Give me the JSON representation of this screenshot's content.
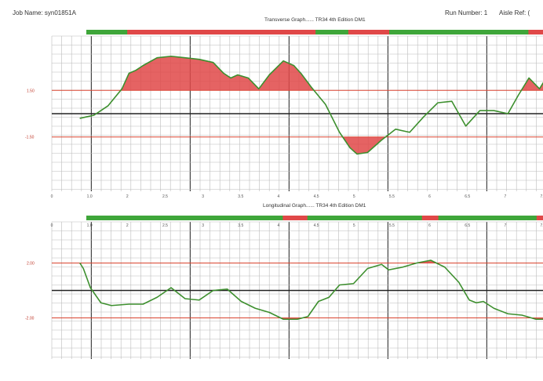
{
  "header": {
    "job_name": "Job Name: syn01851A",
    "run_number": "Run Number: 1",
    "aisle_ref": "Aisle Ref: ("
  },
  "colors": {
    "pass": "#3fa63a",
    "fail": "#e04848",
    "trace": "#3d8f2e",
    "limit": "#d9432e",
    "grid": "#bcbcbc",
    "major_grid": "#444444"
  },
  "chart_data": [
    {
      "type": "line",
      "title": "Transverse Graph...... TR34 4th Edition DM1",
      "x_ticks": [
        "0",
        "1.0",
        "2",
        "2.5",
        "3",
        "3.5",
        "4",
        "4.5",
        "5",
        "5.5",
        "6",
        "6.5",
        "7",
        "7.5"
      ],
      "y_limit_labels": [
        "1.50",
        "-1.50"
      ],
      "upper_limit": 1.5,
      "lower_limit": -1.5,
      "ylim": [
        -5,
        5
      ],
      "fill_exceedance": true,
      "x": [
        0.4,
        0.5,
        0.6,
        0.8,
        1.0,
        1.1,
        1.2,
        1.3,
        1.5,
        1.7,
        1.9,
        2.1,
        2.3,
        2.45,
        2.55,
        2.65,
        2.8,
        2.95,
        3.1,
        3.3,
        3.45,
        3.55,
        3.7,
        3.9,
        4.1,
        4.25,
        4.35,
        4.5,
        4.7,
        4.9,
        5.1,
        5.3,
        5.5,
        5.7,
        5.9,
        6.1,
        6.3,
        6.5,
        6.65,
        6.8,
        6.95,
        7.1,
        7.3,
        7.45,
        7.55,
        7.7
      ],
      "y": [
        -0.3,
        -0.2,
        -0.1,
        0.5,
        1.6,
        2.6,
        2.8,
        3.1,
        3.6,
        3.7,
        3.6,
        3.5,
        3.3,
        2.6,
        2.3,
        2.5,
        2.3,
        1.6,
        2.5,
        3.4,
        3.1,
        2.6,
        1.7,
        0.6,
        -1.2,
        -2.2,
        -2.6,
        -2.5,
        -1.7,
        -1.0,
        -1.2,
        -0.2,
        0.7,
        0.8,
        -0.8,
        0.2,
        0.2,
        0.0,
        1.2,
        2.3,
        1.6,
        2.7,
        2.6,
        2.3,
        2.4,
        2.6
      ]
    },
    {
      "type": "line",
      "title": "Longitudinal Graph...... TR34 4th Edition DM1",
      "x_ticks": [
        "0",
        "1.0",
        "2",
        "2.5",
        "3",
        "3.5",
        "4",
        "4.5",
        "5",
        "5.5",
        "6",
        "6.5",
        "7",
        "7.5"
      ],
      "y_limit_labels": [
        "2.00",
        "-2.00"
      ],
      "upper_limit": 2.0,
      "lower_limit": -2.0,
      "ylim": [
        -5,
        5
      ],
      "fill_exceedance": true,
      "x": [
        0.4,
        0.45,
        0.55,
        0.7,
        0.85,
        1.1,
        1.3,
        1.5,
        1.7,
        1.9,
        2.1,
        2.3,
        2.5,
        2.7,
        2.9,
        3.1,
        3.3,
        3.5,
        3.65,
        3.8,
        3.95,
        4.1,
        4.3,
        4.5,
        4.7,
        4.8,
        5.0,
        5.2,
        5.4,
        5.6,
        5.8,
        5.95,
        6.05,
        6.15,
        6.3,
        6.5,
        6.7,
        6.9,
        7.1,
        7.3,
        7.4,
        7.55,
        7.75
      ],
      "y": [
        2.0,
        1.6,
        0.2,
        -0.9,
        -1.1,
        -1.0,
        -1.0,
        -0.5,
        0.2,
        -0.6,
        -0.7,
        0.0,
        0.1,
        -0.8,
        -1.3,
        -1.6,
        -2.1,
        -2.1,
        -1.9,
        -0.8,
        -0.5,
        0.4,
        0.5,
        1.6,
        1.9,
        1.5,
        1.7,
        2.0,
        2.2,
        1.7,
        0.6,
        -0.7,
        -0.9,
        -0.8,
        -1.3,
        -1.7,
        -1.8,
        -2.1,
        -2.1,
        -1.9,
        -1.0,
        -0.3,
        0.7
      ]
    }
  ]
}
